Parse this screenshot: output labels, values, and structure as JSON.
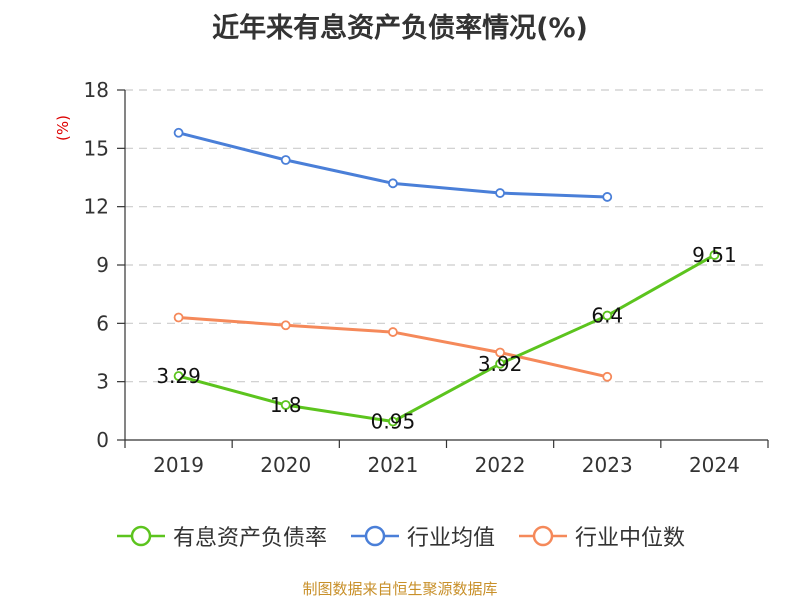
{
  "chart_data": {
    "type": "line",
    "title": "近年来有息资产负债率情况(%)",
    "ylabel": "(%)",
    "categories": [
      "2019",
      "2020",
      "2021",
      "2022",
      "2023",
      "2024"
    ],
    "ylim": [
      0,
      18
    ],
    "yticks": [
      0,
      3,
      6,
      9,
      12,
      15,
      18
    ],
    "grid": true,
    "legend_position": "bottom",
    "series": [
      {
        "name": "有息资产负债率",
        "color": "#5cc41e",
        "values": [
          3.29,
          1.8,
          0.95,
          3.92,
          6.4,
          9.51
        ],
        "labels": [
          "3.29",
          "1.8",
          "0.95",
          "3.92",
          "6.4",
          "9.51"
        ]
      },
      {
        "name": "行业均值",
        "color": "#4a7fd8",
        "values": [
          15.8,
          14.4,
          13.2,
          12.7,
          12.5,
          null
        ]
      },
      {
        "name": "行业中位数",
        "color": "#f5895a",
        "values": [
          6.3,
          5.9,
          5.55,
          4.5,
          3.25,
          null
        ]
      }
    ]
  },
  "ylabel_color": "#dd0000",
  "source_text": "制图数据来自恒生聚源数据库",
  "source_color": "#c8902a"
}
